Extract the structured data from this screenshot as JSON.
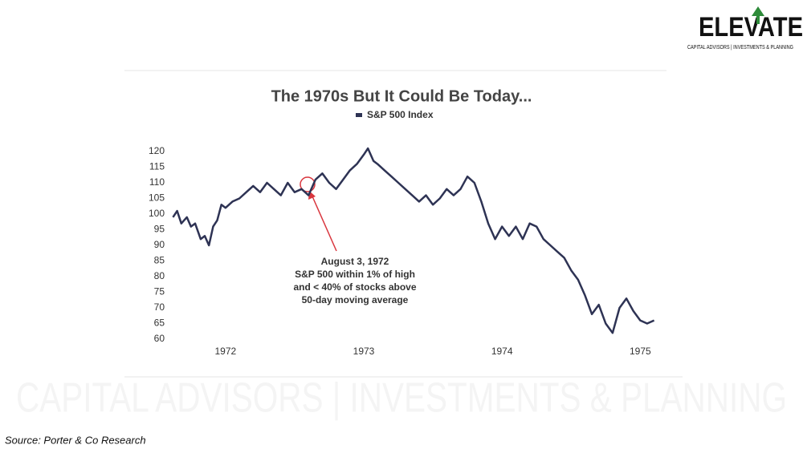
{
  "logo": {
    "name": "ELEVATE",
    "tagline": "CAPITAL ADVISORS | INVESTMENTS & PLANNING"
  },
  "source": "Source: Porter & Co Research",
  "chart_data": {
    "type": "line",
    "title": "The 1970s But It Could Be Today...",
    "annotation": [
      "August 3, 1972",
      "S&P 500 within 1% of high",
      "and < 40% of stocks above",
      "50-day moving average"
    ],
    "x": [
      1971.62,
      1971.65,
      1971.68,
      1971.72,
      1971.75,
      1971.78,
      1971.82,
      1971.85,
      1971.88,
      1971.91,
      1971.94,
      1971.97,
      1972.0,
      1972.05,
      1972.1,
      1972.15,
      1972.2,
      1972.25,
      1972.3,
      1972.35,
      1972.4,
      1972.45,
      1972.5,
      1972.55,
      1972.6,
      1972.65,
      1972.7,
      1972.75,
      1972.8,
      1972.85,
      1972.9,
      1972.95,
      1973.0,
      1973.03,
      1973.07,
      1973.1,
      1973.15,
      1973.2,
      1973.25,
      1973.3,
      1973.35,
      1973.4,
      1973.45,
      1973.5,
      1973.55,
      1973.6,
      1973.65,
      1973.7,
      1973.75,
      1973.8,
      1973.85,
      1973.9,
      1973.95,
      1974.0,
      1974.05,
      1974.1,
      1974.15,
      1974.2,
      1974.25,
      1974.3,
      1974.35,
      1974.4,
      1974.45,
      1974.5,
      1974.55,
      1974.6,
      1974.65,
      1974.7,
      1974.75,
      1974.8,
      1974.85,
      1974.9,
      1974.95,
      1975.0,
      1975.05,
      1975.1
    ],
    "series": [
      {
        "name": "S&P 500 Index",
        "color": "#2e3354",
        "values": [
          99,
          101,
          97,
          99,
          96,
          97,
          92,
          93,
          90,
          96,
          98,
          103,
          102,
          104,
          105,
          107,
          109,
          107,
          110,
          108,
          106,
          110,
          107,
          108,
          106,
          111,
          113,
          110,
          108,
          111,
          114,
          116,
          119,
          121,
          117,
          116,
          114,
          112,
          110,
          108,
          106,
          104,
          106,
          103,
          105,
          108,
          106,
          108,
          112,
          110,
          104,
          97,
          92,
          96,
          93,
          96,
          92,
          97,
          96,
          92,
          90,
          88,
          86,
          82,
          79,
          74,
          68,
          71,
          65,
          62,
          70,
          73,
          69,
          66,
          65,
          66
        ]
      }
    ],
    "xlim": [
      1971.6,
      1975.12
    ],
    "xticks": [
      1972,
      1973,
      1974,
      1975
    ],
    "ylim": [
      60,
      120
    ],
    "yticks": [
      60,
      65,
      70,
      75,
      80,
      85,
      90,
      95,
      100,
      105,
      110,
      115,
      120
    ],
    "grid": false
  }
}
